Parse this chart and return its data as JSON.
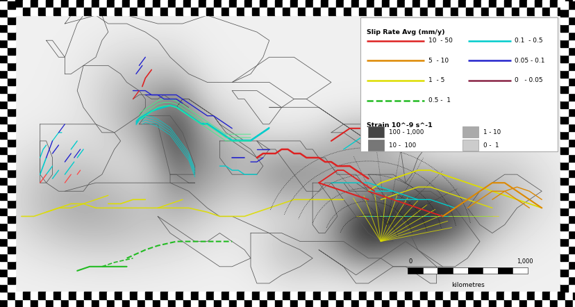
{
  "figsize": [
    8.29,
    4.42
  ],
  "dpi": 100,
  "legend": {
    "title": "Slip Rate Avg (mm/y)",
    "slip_rates": [
      {
        "label": "10  - 50",
        "color": "#dd2222",
        "lw": 1.8,
        "ls": "solid"
      },
      {
        "label": "5  - 10",
        "color": "#dd8800",
        "lw": 1.8,
        "ls": "solid"
      },
      {
        "label": "1  - 5",
        "color": "#dddd00",
        "lw": 1.8,
        "ls": "solid"
      },
      {
        "label": "0.5 -  1",
        "color": "#22bb22",
        "lw": 1.8,
        "ls": "dashed"
      },
      {
        "label": "0.1  - 0.5",
        "color": "#00cccc",
        "lw": 1.8,
        "ls": "solid"
      },
      {
        "label": "0.05 - 0.1",
        "color": "#2222cc",
        "lw": 1.8,
        "ls": "solid"
      },
      {
        "label": "0   - 0.05",
        "color": "#882244",
        "lw": 1.8,
        "ls": "solid"
      }
    ],
    "strain_title": "Strain 10^-9 s^-1",
    "strain_items": [
      {
        "label": "100 - 1,000",
        "color": "#444444"
      },
      {
        "label": "10 -  100",
        "color": "#777777"
      },
      {
        "label": "1 - 10",
        "color": "#aaaaaa"
      },
      {
        "label": "0 -  1",
        "color": "#cccccc"
      }
    ]
  },
  "lon_min": -13,
  "lon_max": 75,
  "lat_min": 24,
  "lat_max": 57
}
